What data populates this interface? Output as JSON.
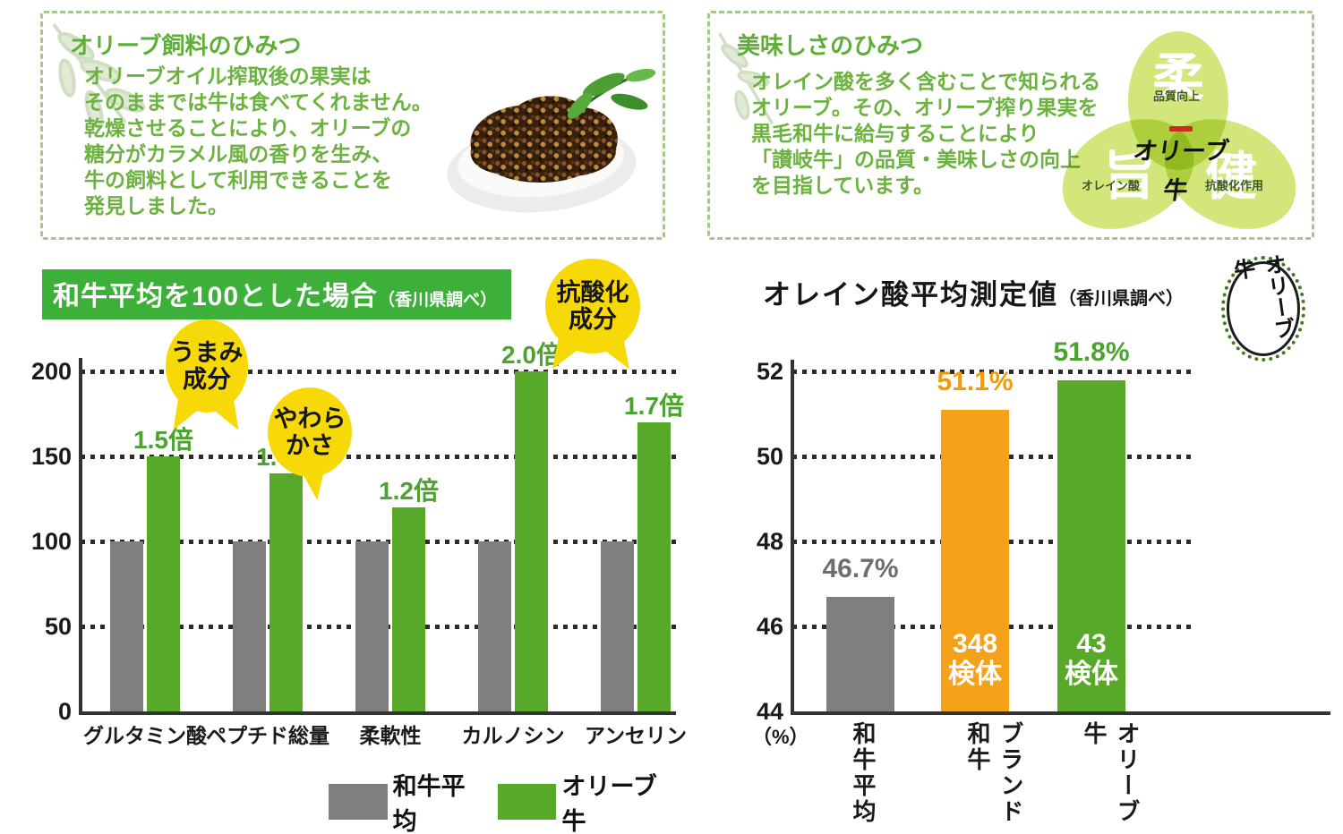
{
  "box_feed": {
    "title": "オリーブ飼料のひみつ",
    "lines": [
      "オリーブオイル搾取後の果実は",
      "そのままでは牛は食べてくれません。",
      "乾燥させることにより、オリーブの",
      "糖分がカラメル風の香りを生み、",
      "牛の飼料として利用できることを",
      "発見しました。"
    ]
  },
  "box_taste": {
    "title": "美味しさのひみつ",
    "lines": [
      "オレイン酸を多く含むことで知られる",
      "オリーブ。その、オリーブ搾り果実を",
      "黒毛和牛に給与することにより",
      "「讃岐牛」の品質・美味しさの向上",
      "を目指しています。"
    ],
    "venn": {
      "top_kanji": "柔",
      "top_label": "品質向上",
      "left_kanji": "旨",
      "left_label": "オレイン酸",
      "right_kanji": "健",
      "right_label": "抗酸化作用",
      "center_logo": "オリーブ牛"
    }
  },
  "charts": {
    "left": {
      "banner_title": "和牛平均を100とした場合",
      "banner_note": "（香川県調べ）",
      "bubbles": [
        [
          "うまみ",
          "成分"
        ],
        [
          "やわら",
          "かさ"
        ],
        [
          "抗酸化",
          "成分"
        ]
      ]
    },
    "right": {
      "title": "オレイン酸平均測定値",
      "note": "（香川県調べ）",
      "unit": "（%）",
      "logo_text": "オリーブ牛"
    }
  },
  "chart_data": [
    {
      "id": "wagyu-comparison",
      "type": "bar",
      "title": "和牛平均を100とした場合（香川県調べ）",
      "categories": [
        "グルタミン酸",
        "ペプチド総量",
        "柔軟性",
        "カルノシン",
        "アンセリン"
      ],
      "series": [
        {
          "name": "和牛平均",
          "color": "#7f7f7f",
          "values": [
            100,
            100,
            100,
            100,
            100
          ]
        },
        {
          "name": "オリーブ牛",
          "color": "#58a82a",
          "values": [
            150,
            140,
            120,
            200,
            170
          ]
        }
      ],
      "bar_value_labels": [
        "1.5倍",
        "1.4倍",
        "1.2倍",
        "2.0倍",
        "1.7倍"
      ],
      "annotations": [
        "うまみ成分",
        "やわらかさ",
        "抗酸化成分"
      ],
      "value_label_color": "#4da32f",
      "yticks": [
        0,
        50,
        100,
        150,
        200
      ],
      "ylim": [
        0,
        220
      ],
      "grid": true,
      "legend_position": "bottom"
    },
    {
      "id": "oleic-acid",
      "type": "bar",
      "title": "オレイン酸平均測定値（香川県調べ）",
      "categories": [
        "和牛平均",
        "ブランド和牛",
        "オリーブ牛"
      ],
      "values": [
        46.7,
        51.1,
        51.8
      ],
      "bar_colors": [
        "#7f7f7f",
        "#f5a21b",
        "#58a82a"
      ],
      "value_labels": [
        "46.7%",
        "51.1%",
        "51.8%"
      ],
      "value_label_colors": [
        "#6e6e6e",
        "#f59a00",
        "#4da32f"
      ],
      "bar_inner_labels": [
        null,
        [
          "348",
          "検体"
        ],
        [
          "43",
          "検体"
        ]
      ],
      "ylabel": "（%）",
      "yticks": [
        44,
        46,
        48,
        50,
        52
      ],
      "ylim": [
        44,
        52.6
      ],
      "grid": true
    }
  ]
}
